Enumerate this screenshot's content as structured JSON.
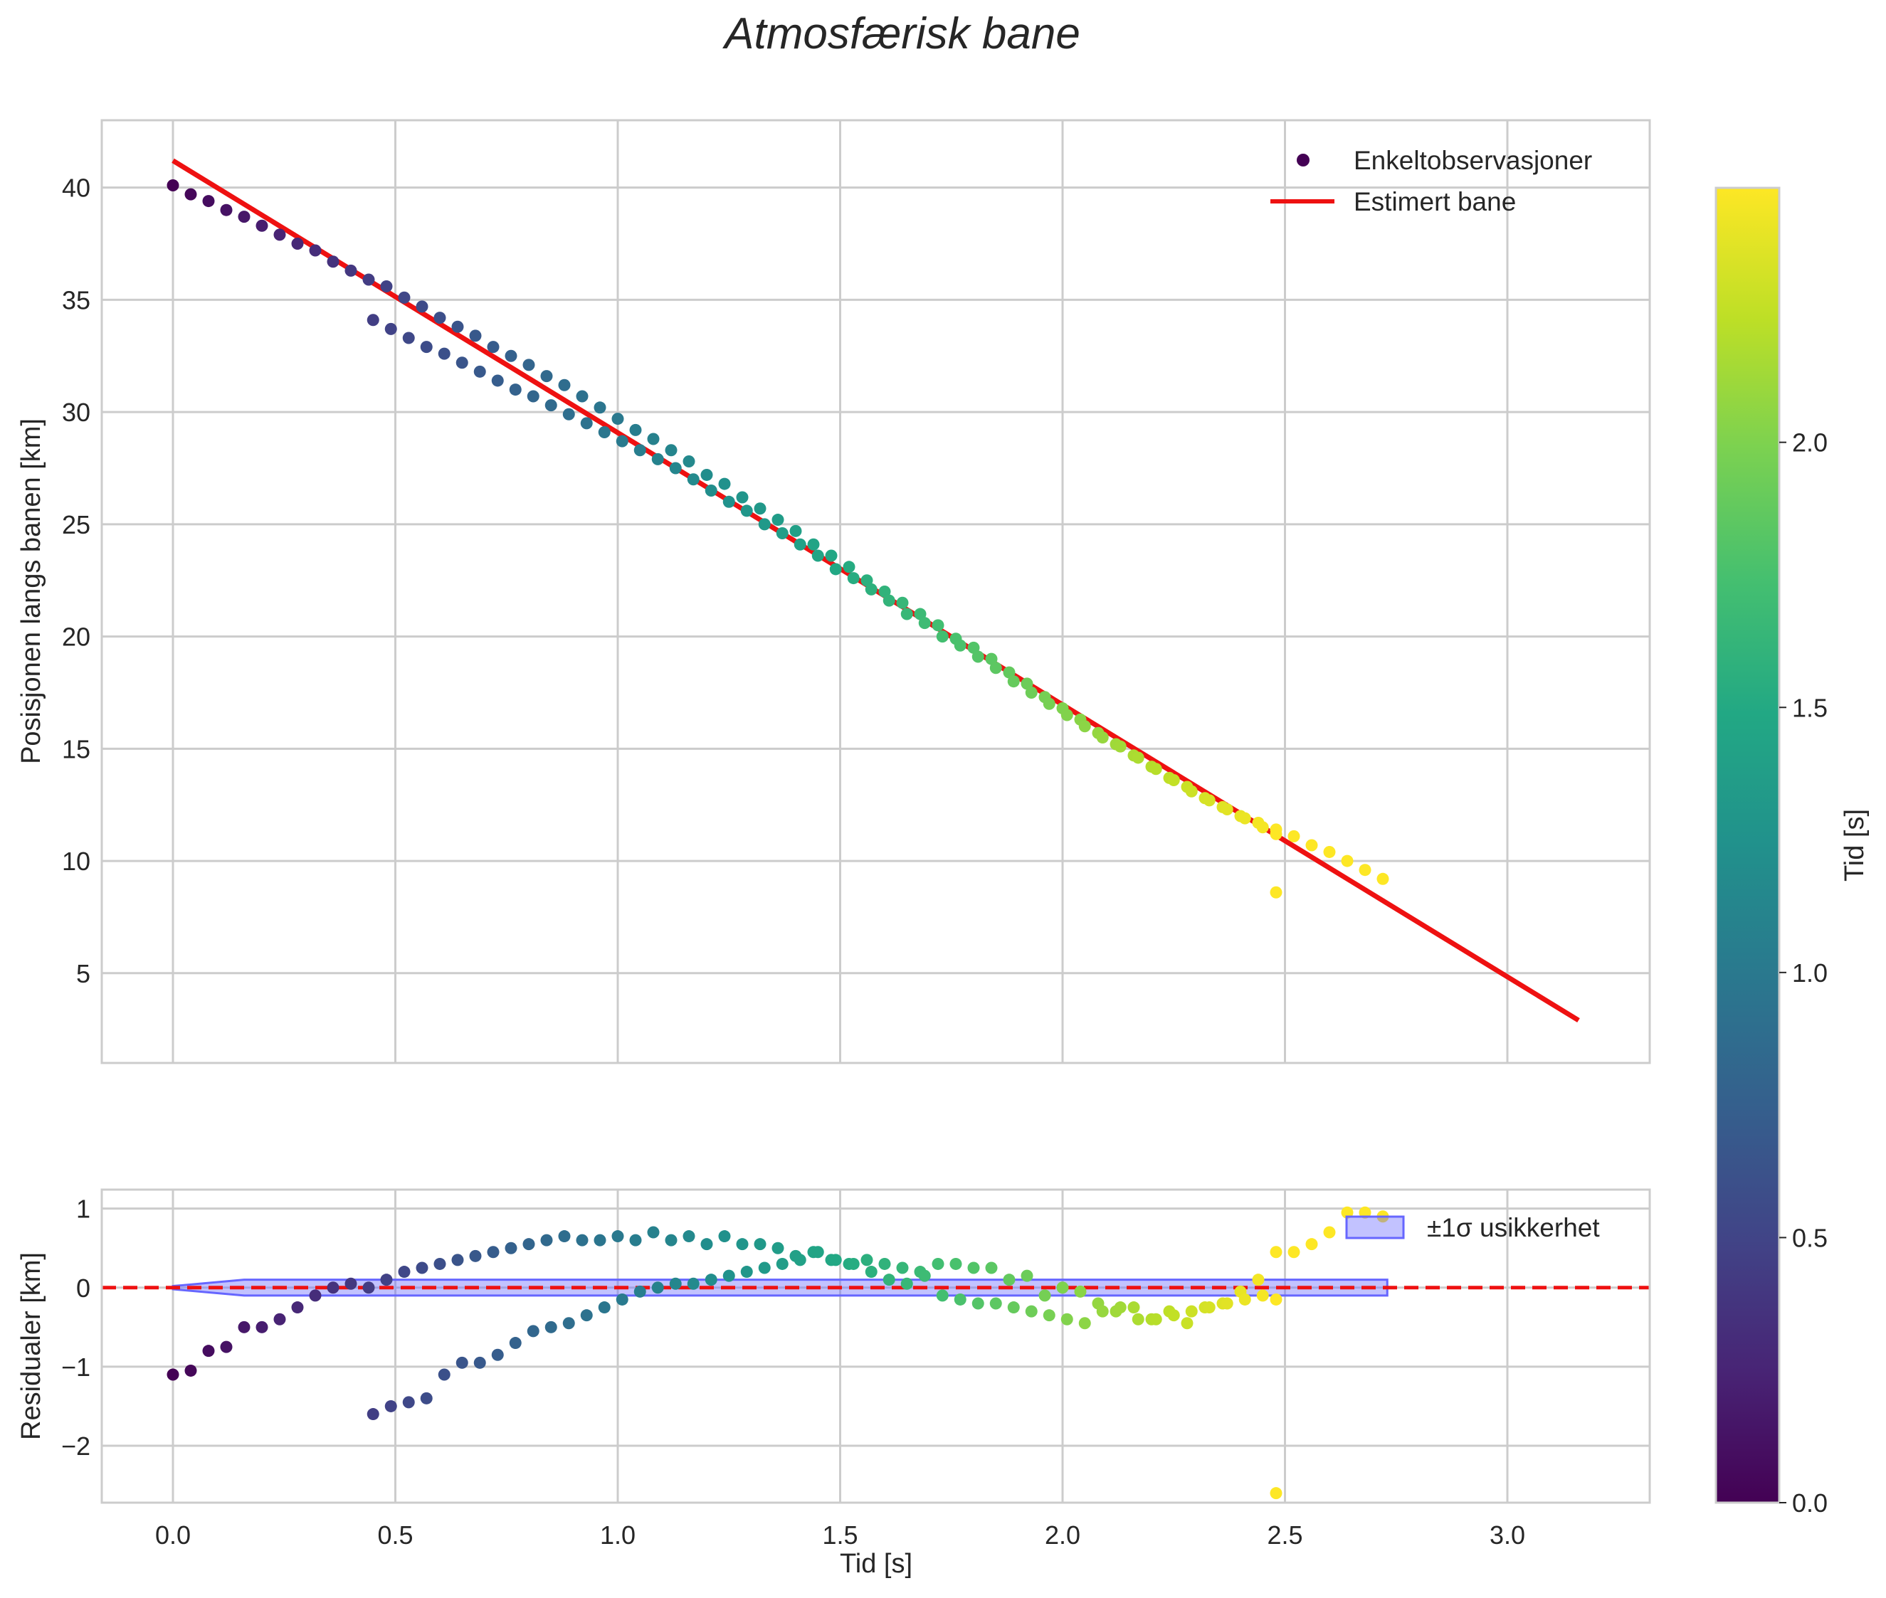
{
  "chart_data": {
    "type": "scatter",
    "title": "Atmosfærisk bane",
    "xlabel": "Tid [s]",
    "xticks": [
      "0.0",
      "0.5",
      "1.0",
      "1.5",
      "2.0",
      "2.5",
      "3.0"
    ],
    "xlim": [
      -0.16,
      3.32
    ],
    "colormap": "viridis",
    "colorbar": {
      "label": "Tid [s]",
      "range": [
        0.0,
        2.48
      ],
      "ticks": [
        "0.0",
        "0.5",
        "1.0",
        "1.5",
        "2.0"
      ]
    },
    "top": {
      "ylabel": "Posisjonen langs banen [km]",
      "yticks": [
        "5",
        "10",
        "15",
        "20",
        "25",
        "30",
        "35",
        "40"
      ],
      "ylim": [
        1.0,
        43.0
      ],
      "legend": [
        "Enkeltobservasjoner",
        "Estimert bane"
      ],
      "legend_loc": "upper right",
      "fit_line": {
        "x": [
          0.0,
          3.16
        ],
        "y": [
          41.2,
          2.9
        ],
        "color": "#ee1111"
      }
    },
    "bottom": {
      "ylabel": "Residualer [km]",
      "yticks": [
        "1",
        "0",
        "−1",
        "−2"
      ],
      "ylim": [
        -2.72,
        1.24
      ],
      "legend": [
        "±1σ usikkerhet"
      ],
      "legend_loc": "upper right",
      "band": {
        "x": [
          0.0,
          0.16,
          2.73
        ],
        "lower": [
          -0.02,
          -0.1,
          -0.1
        ],
        "upper": [
          0.02,
          0.1,
          0.1
        ],
        "color": "#6666ff"
      },
      "zero_line_color": "#ee1111"
    },
    "series": [
      {
        "name": "branch_a",
        "t": [
          0.0,
          0.04,
          0.08,
          0.12,
          0.16,
          0.2,
          0.24,
          0.28,
          0.32,
          0.36,
          0.4,
          0.44,
          0.48,
          0.52,
          0.56,
          0.6,
          0.64,
          0.68,
          0.72,
          0.76,
          0.8,
          0.84,
          0.88,
          0.92,
          0.96,
          1.0,
          1.04,
          1.08,
          1.12,
          1.16,
          1.2,
          1.24,
          1.28,
          1.32,
          1.36,
          1.4,
          1.44,
          1.48,
          1.52,
          1.56,
          1.6,
          1.64,
          1.68,
          1.72,
          1.76,
          1.8,
          1.84,
          1.88,
          1.92,
          1.96,
          2.0,
          2.04,
          2.08,
          2.12,
          2.16,
          2.2,
          2.24,
          2.28,
          2.32,
          2.36,
          2.4,
          2.44,
          2.48,
          2.52,
          2.56,
          2.6,
          2.64,
          2.68,
          2.72
        ],
        "y": [
          40.1,
          39.7,
          39.4,
          39.0,
          38.7,
          38.3,
          37.9,
          37.5,
          37.2,
          36.7,
          36.3,
          35.9,
          35.6,
          35.1,
          34.7,
          34.2,
          33.8,
          33.4,
          32.9,
          32.5,
          32.1,
          31.6,
          31.2,
          30.7,
          30.2,
          29.7,
          29.2,
          28.8,
          28.3,
          27.8,
          27.2,
          26.8,
          26.2,
          25.7,
          25.2,
          24.7,
          24.1,
          23.6,
          23.1,
          22.5,
          22.0,
          21.5,
          21.0,
          20.5,
          19.9,
          19.5,
          19.0,
          18.4,
          17.9,
          17.3,
          16.8,
          16.3,
          15.7,
          15.2,
          14.7,
          14.2,
          13.7,
          13.3,
          12.8,
          12.4,
          12.0,
          11.7,
          11.4,
          11.1,
          10.7,
          10.4,
          10.0,
          9.6,
          9.2
        ],
        "r": [
          -1.1,
          -1.05,
          -0.8,
          -0.75,
          -0.5,
          -0.5,
          -0.4,
          -0.25,
          -0.1,
          0.0,
          0.05,
          0.0,
          0.1,
          0.2,
          0.25,
          0.3,
          0.35,
          0.4,
          0.45,
          0.5,
          0.55,
          0.6,
          0.65,
          0.6,
          0.6,
          0.65,
          0.6,
          0.7,
          0.6,
          0.65,
          0.55,
          0.65,
          0.55,
          0.55,
          0.5,
          0.4,
          0.45,
          0.35,
          0.3,
          0.35,
          0.3,
          0.25,
          0.2,
          0.3,
          0.3,
          0.25,
          0.25,
          0.1,
          0.15,
          -0.1,
          0.0,
          -0.05,
          -0.2,
          -0.3,
          -0.25,
          -0.4,
          -0.3,
          -0.45,
          -0.25,
          -0.2,
          -0.05,
          0.1,
          0.45,
          0.45,
          0.55,
          0.7,
          0.95,
          0.95,
          0.9
        ]
      },
      {
        "name": "branch_b",
        "t": [
          0.45,
          0.49,
          0.53,
          0.57,
          0.61,
          0.65,
          0.69,
          0.73,
          0.77,
          0.81,
          0.85,
          0.89,
          0.93,
          0.97,
          1.01,
          1.05,
          1.09,
          1.13,
          1.17,
          1.21,
          1.25,
          1.29,
          1.33,
          1.37,
          1.41,
          1.45,
          1.49,
          1.53,
          1.57,
          1.61,
          1.65,
          1.69,
          1.73,
          1.77,
          1.81,
          1.85,
          1.89,
          1.93,
          1.97,
          2.01,
          2.05,
          2.09,
          2.13,
          2.17,
          2.21,
          2.25,
          2.29,
          2.33,
          2.37,
          2.41,
          2.45,
          2.48,
          2.48
        ],
        "y": [
          34.1,
          33.7,
          33.3,
          32.9,
          32.6,
          32.2,
          31.8,
          31.4,
          31.0,
          30.7,
          30.3,
          29.9,
          29.5,
          29.1,
          28.7,
          28.3,
          27.9,
          27.5,
          27.0,
          26.5,
          26.0,
          25.6,
          25.0,
          24.6,
          24.1,
          23.6,
          23.0,
          22.6,
          22.1,
          21.6,
          21.0,
          20.6,
          20.0,
          19.6,
          19.1,
          18.6,
          18.0,
          17.5,
          17.0,
          16.5,
          16.0,
          15.5,
          15.1,
          14.6,
          14.1,
          13.6,
          13.1,
          12.7,
          12.3,
          11.9,
          11.5,
          11.2,
          8.6
        ],
        "r": [
          -1.6,
          -1.5,
          -1.45,
          -1.4,
          -1.1,
          -0.95,
          -0.95,
          -0.85,
          -0.7,
          -0.55,
          -0.5,
          -0.45,
          -0.35,
          -0.25,
          -0.15,
          -0.05,
          0.0,
          0.05,
          0.05,
          0.1,
          0.15,
          0.2,
          0.25,
          0.3,
          0.35,
          0.45,
          0.35,
          0.3,
          0.2,
          0.1,
          0.05,
          0.15,
          -0.1,
          -0.15,
          -0.2,
          -0.2,
          -0.25,
          -0.3,
          -0.35,
          -0.4,
          -0.45,
          -0.3,
          -0.25,
          -0.4,
          -0.4,
          -0.35,
          -0.3,
          -0.25,
          -0.2,
          -0.15,
          -0.1,
          -0.15,
          -2.6
        ]
      }
    ]
  }
}
